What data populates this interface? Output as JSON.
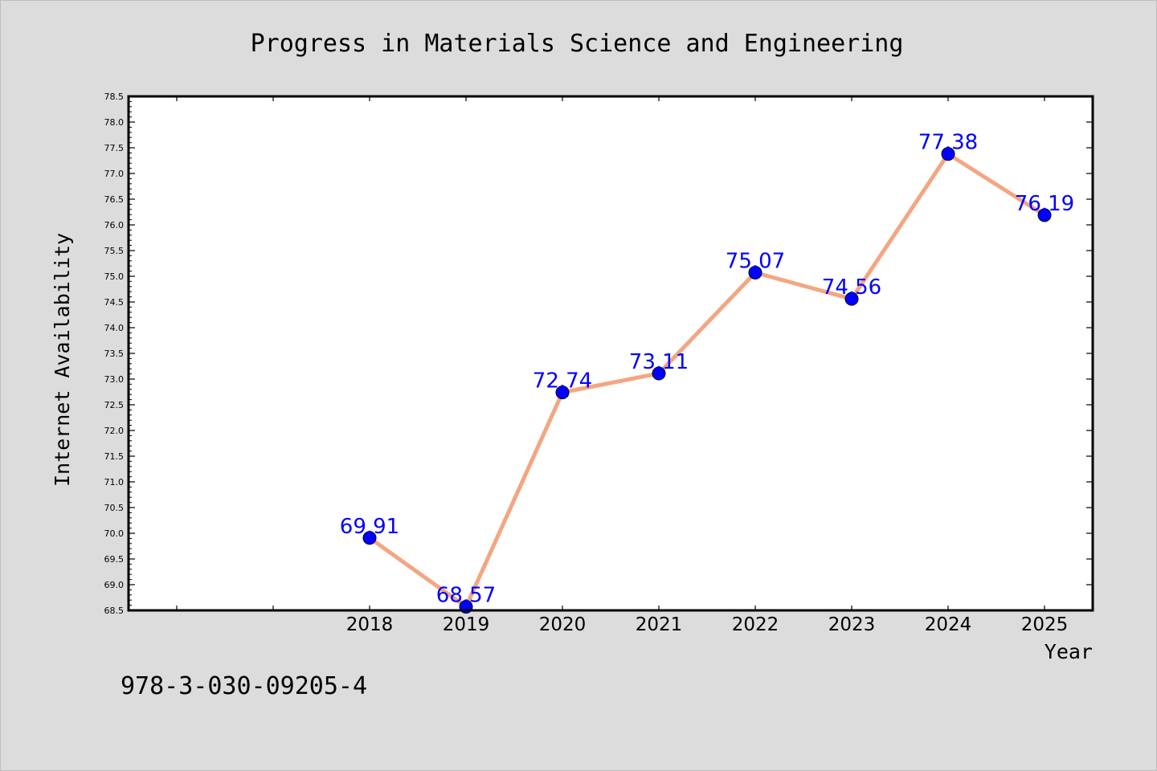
{
  "chart_data": {
    "type": "line",
    "title": "Progress in Materials Science and Engineering",
    "xlabel": "Year",
    "ylabel": "Internet Availability",
    "x": [
      "2018",
      "2019",
      "2020",
      "2021",
      "2022",
      "2023",
      "2024",
      "2025"
    ],
    "series": [
      {
        "values": [
          69.91,
          68.57,
          72.74,
          73.11,
          75.07,
          74.56,
          77.38,
          76.19
        ],
        "data_labels": [
          "69.91",
          "68.57",
          "72.74",
          "73.11",
          "75.07",
          "74.56",
          "77.38",
          "76.19"
        ]
      }
    ],
    "ylim": [
      68.5,
      78.5
    ],
    "ytick_labels": [
      "68.5",
      "69.0",
      "69.5",
      "70.0",
      "70.5",
      "71.0",
      "71.5",
      "72.0",
      "72.5",
      "73.0",
      "73.5",
      "74.0",
      "74.5",
      "75.0",
      "75.5",
      "76.0",
      "76.5",
      "77.0",
      "77.5",
      "78.0",
      "78.5"
    ],
    "grid": false,
    "line_color": "#f4a582",
    "marker_color": "#0000ff",
    "label_color": "#0000ff",
    "background_color": "#dcdcdc",
    "plot_background_color": "#ffffff"
  },
  "annotation": {
    "isbn": "978-3-030-09205-4"
  }
}
